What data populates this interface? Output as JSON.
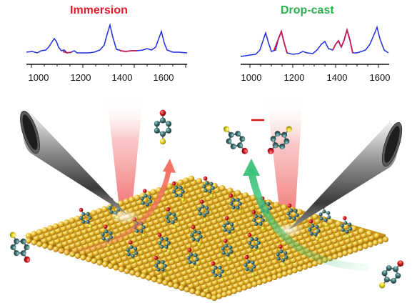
{
  "spectra": [
    {
      "title": "Immersion",
      "title_color": "#e0192b",
      "line_color": "#1f2de0",
      "highlight_color": "#c8174a",
      "ticks": [
        "1000",
        "1200",
        "1400",
        "1600"
      ]
    },
    {
      "title": "Drop-cast",
      "title_color": "#27b34b",
      "line_color": "#1f2de0",
      "highlight_color": "#c8174a",
      "ticks": [
        "1000",
        "1200",
        "1400",
        "1600"
      ]
    }
  ],
  "colors": {
    "gold": "#e6b52a",
    "carbon": "#3c6d6d",
    "oxygen": "#d4141c",
    "sulfur": "#e3d21a",
    "arrow_red": "#f26d5f",
    "arrow_green": "#3bc27a",
    "laser": "#f15a5a"
  },
  "icons": [
    "tip-cone-icon",
    "laser-beam-icon",
    "molecule-icon",
    "gold-surface-icon",
    "arrow-icon"
  ]
}
